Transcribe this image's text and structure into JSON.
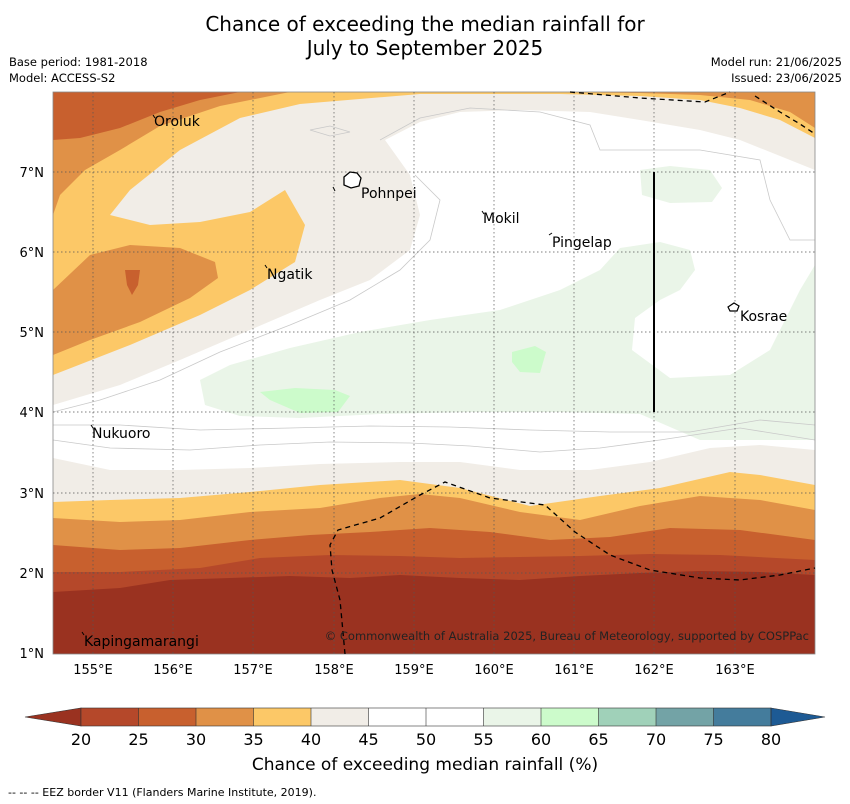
{
  "title_line1": "Chance of exceeding the median rainfall for",
  "title_line2": "July to September 2025",
  "base_period": "Base period: 1981-2018",
  "model": "Model: ACCESS-S2",
  "model_run": "Model run: 21/06/2025",
  "issued": "Issued: 23/06/2025",
  "copyright": "© Commonwealth of Australia 2025, Bureau of Meteorology, supported by COSPPac",
  "colorbar_label": "Chance of exceeding median rainfall (%)",
  "footnote": "-- -- -- EEZ border V11 (Flanders Marine Institute, 2019).",
  "map": {
    "lon_ticks": [
      "155°E",
      "156°E",
      "157°E",
      "158°E",
      "159°E",
      "160°E",
      "161°E",
      "162°E",
      "163°E"
    ],
    "lat_ticks": [
      "7°N",
      "6°N",
      "5°N",
      "4°N",
      "3°N",
      "2°N",
      "1°N"
    ],
    "places": [
      "Oroluk",
      "Pohnpei",
      "Mokil",
      "Pingelap",
      "Ngatik",
      "Kosrae",
      "Nukuoro",
      "Kapingamarangi"
    ]
  },
  "colorbar": {
    "levels": [
      "20",
      "25",
      "30",
      "35",
      "40",
      "45",
      "50",
      "55",
      "60",
      "65",
      "70",
      "75",
      "80"
    ],
    "colors": [
      "#9a3220",
      "#b5482a",
      "#c8602e",
      "#e09147",
      "#fcc867",
      "#f1ede7",
      "#ffffff",
      "#ffffff",
      "#eaf5e8",
      "#ccfbcb",
      "#a0d1b9",
      "#73a3a6",
      "#447c9c",
      "#1d5a94"
    ]
  }
}
